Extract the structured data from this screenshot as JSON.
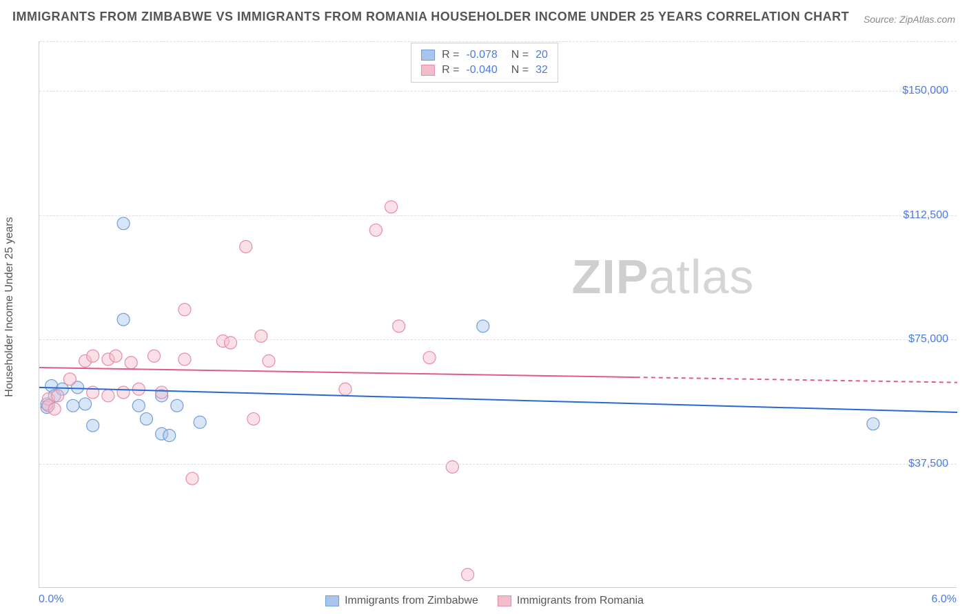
{
  "title": "IMMIGRANTS FROM ZIMBABWE VS IMMIGRANTS FROM ROMANIA HOUSEHOLDER INCOME UNDER 25 YEARS CORRELATION CHART",
  "source": "Source: ZipAtlas.com",
  "ylabel": "Householder Income Under 25 years",
  "watermark": {
    "zip": "ZIP",
    "atlas": "atlas"
  },
  "chart": {
    "type": "scatter",
    "background_color": "#ffffff",
    "grid_color": "#dddddd",
    "axis_color": "#cccccc",
    "text_color": "#555555",
    "value_color": "#4a7ae0",
    "xlim": [
      0.0,
      6.0
    ],
    "ylim": [
      0,
      165000
    ],
    "xtick_labels": [
      "0.0%",
      "6.0%"
    ],
    "ytick_values": [
      37500,
      75000,
      112500,
      150000
    ],
    "ytick_labels": [
      "$37,500",
      "$75,000",
      "$112,500",
      "$150,000"
    ],
    "marker_radius": 9,
    "marker_opacity": 0.45,
    "line_width": 2,
    "series": [
      {
        "name": "Immigrants from Zimbabwe",
        "fill_color": "#a8c5ec",
        "stroke_color": "#6e9ed9",
        "line_color": "#2768d4",
        "r": "-0.078",
        "n": "20",
        "trend": {
          "y_left": 60500,
          "y_right": 53000
        },
        "trend_break_x": 6.0,
        "points": [
          [
            0.05,
            54500
          ],
          [
            0.05,
            55500
          ],
          [
            0.08,
            61000
          ],
          [
            0.1,
            58000
          ],
          [
            0.15,
            60000
          ],
          [
            0.22,
            55000
          ],
          [
            0.25,
            60500
          ],
          [
            0.3,
            55500
          ],
          [
            0.35,
            49000
          ],
          [
            0.55,
            110000
          ],
          [
            0.55,
            81000
          ],
          [
            0.65,
            55000
          ],
          [
            0.7,
            51000
          ],
          [
            0.8,
            58000
          ],
          [
            0.8,
            46500
          ],
          [
            0.85,
            46000
          ],
          [
            0.9,
            55000
          ],
          [
            1.05,
            50000
          ],
          [
            2.9,
            79000
          ],
          [
            5.45,
            49500
          ]
        ]
      },
      {
        "name": "Immigrants from Romania",
        "fill_color": "#f3bccb",
        "stroke_color": "#e88ba5",
        "line_color": "#e05a85",
        "r": "-0.040",
        "n": "32",
        "trend": {
          "y_left": 66500,
          "y_right": 62000
        },
        "trend_break_x": 3.9,
        "points": [
          [
            0.06,
            57000
          ],
          [
            0.06,
            55000
          ],
          [
            0.1,
            54000
          ],
          [
            0.12,
            58000
          ],
          [
            0.2,
            63000
          ],
          [
            0.3,
            68500
          ],
          [
            0.35,
            59000
          ],
          [
            0.35,
            70000
          ],
          [
            0.45,
            69000
          ],
          [
            0.45,
            58000
          ],
          [
            0.5,
            70000
          ],
          [
            0.55,
            59000
          ],
          [
            0.6,
            68000
          ],
          [
            0.65,
            60000
          ],
          [
            0.75,
            70000
          ],
          [
            0.8,
            59000
          ],
          [
            0.95,
            69000
          ],
          [
            0.95,
            84000
          ],
          [
            1.0,
            33000
          ],
          [
            1.2,
            74500
          ],
          [
            1.25,
            74000
          ],
          [
            1.35,
            103000
          ],
          [
            1.4,
            51000
          ],
          [
            1.45,
            76000
          ],
          [
            1.5,
            68500
          ],
          [
            2.0,
            60000
          ],
          [
            2.2,
            108000
          ],
          [
            2.3,
            115000
          ],
          [
            2.55,
            69500
          ],
          [
            2.7,
            36500
          ],
          [
            2.8,
            4000
          ],
          [
            2.35,
            79000
          ]
        ]
      }
    ]
  },
  "legend_top": {
    "r_label": "R =",
    "n_label": "N ="
  }
}
